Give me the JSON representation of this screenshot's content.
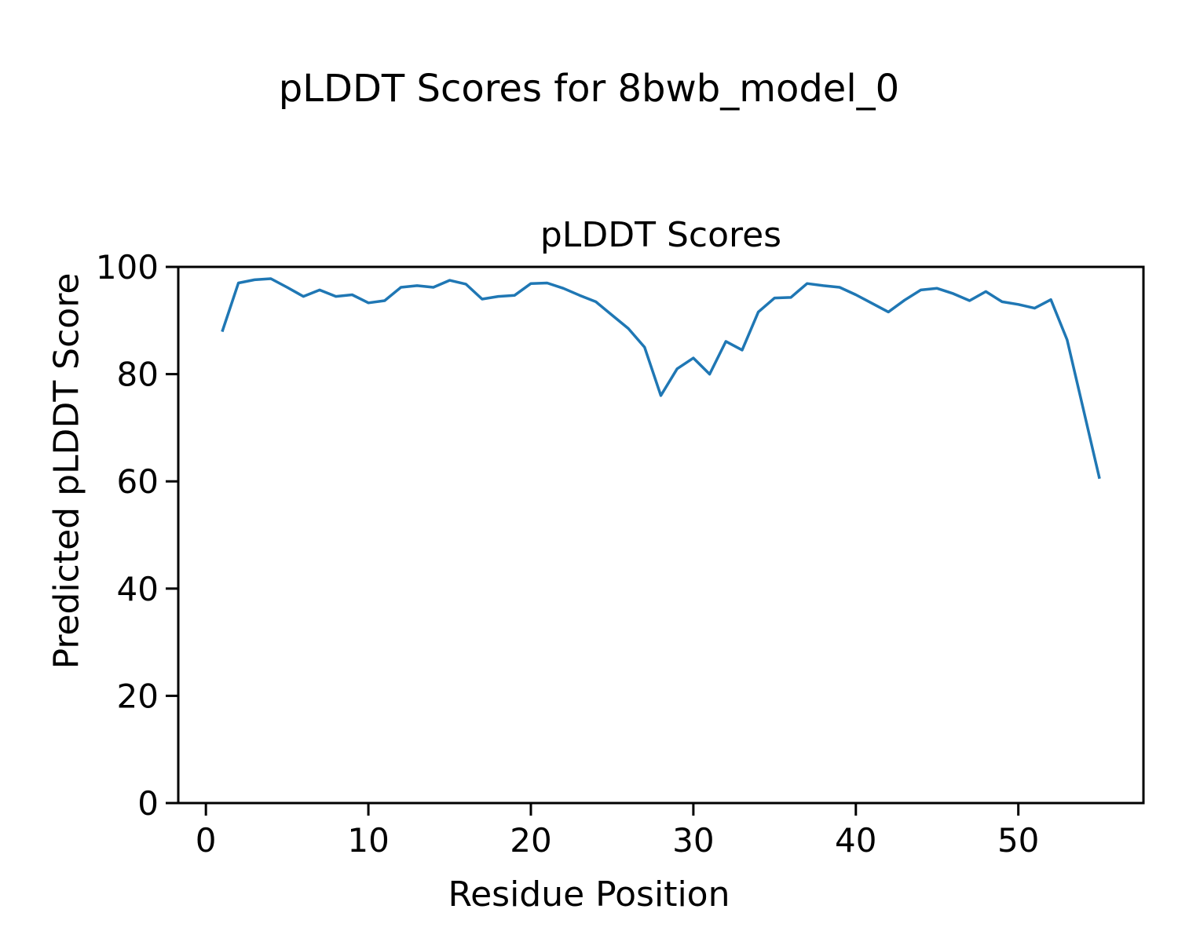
{
  "figure": {
    "suptitle": "pLDDT Scores for 8bwb_model_0",
    "background": "#ffffff"
  },
  "chart_data": {
    "type": "line",
    "title": "pLDDT Scores",
    "xlabel": "Residue Position",
    "ylabel": "Predicted pLDDT Score",
    "line_color": "#1f77b4",
    "axis_color": "#000000",
    "grid": false,
    "legend": "none",
    "xlim": [
      -1.7,
      57.7
    ],
    "ylim": [
      0,
      100
    ],
    "xticks": [
      0,
      10,
      20,
      30,
      40,
      50
    ],
    "yticks": [
      0,
      20,
      40,
      60,
      80,
      100
    ],
    "x": [
      1,
      2,
      3,
      4,
      5,
      6,
      7,
      8,
      9,
      10,
      11,
      12,
      13,
      14,
      15,
      16,
      17,
      18,
      19,
      20,
      21,
      22,
      23,
      24,
      25,
      26,
      27,
      28,
      29,
      30,
      31,
      32,
      33,
      34,
      35,
      36,
      37,
      38,
      39,
      40,
      41,
      42,
      43,
      44,
      45,
      46,
      47,
      48,
      49,
      50,
      51,
      52,
      53,
      54,
      55
    ],
    "values": [
      87.9,
      97.0,
      97.6,
      97.8,
      96.2,
      94.5,
      95.7,
      94.5,
      94.8,
      93.3,
      93.7,
      96.2,
      96.5,
      96.2,
      97.5,
      96.8,
      94.0,
      94.5,
      94.7,
      96.9,
      97.0,
      96.0,
      94.7,
      93.5,
      91.0,
      88.5,
      85.0,
      76.0,
      81.0,
      83.0,
      80.0,
      86.1,
      84.5,
      91.6,
      94.2,
      94.3,
      96.9,
      96.5,
      96.2,
      94.8,
      93.2,
      91.6,
      93.8,
      95.7,
      96.0,
      95.0,
      93.7,
      95.4,
      93.5,
      93.0,
      92.3,
      93.9,
      86.4,
      73.5,
      60.5
    ]
  }
}
